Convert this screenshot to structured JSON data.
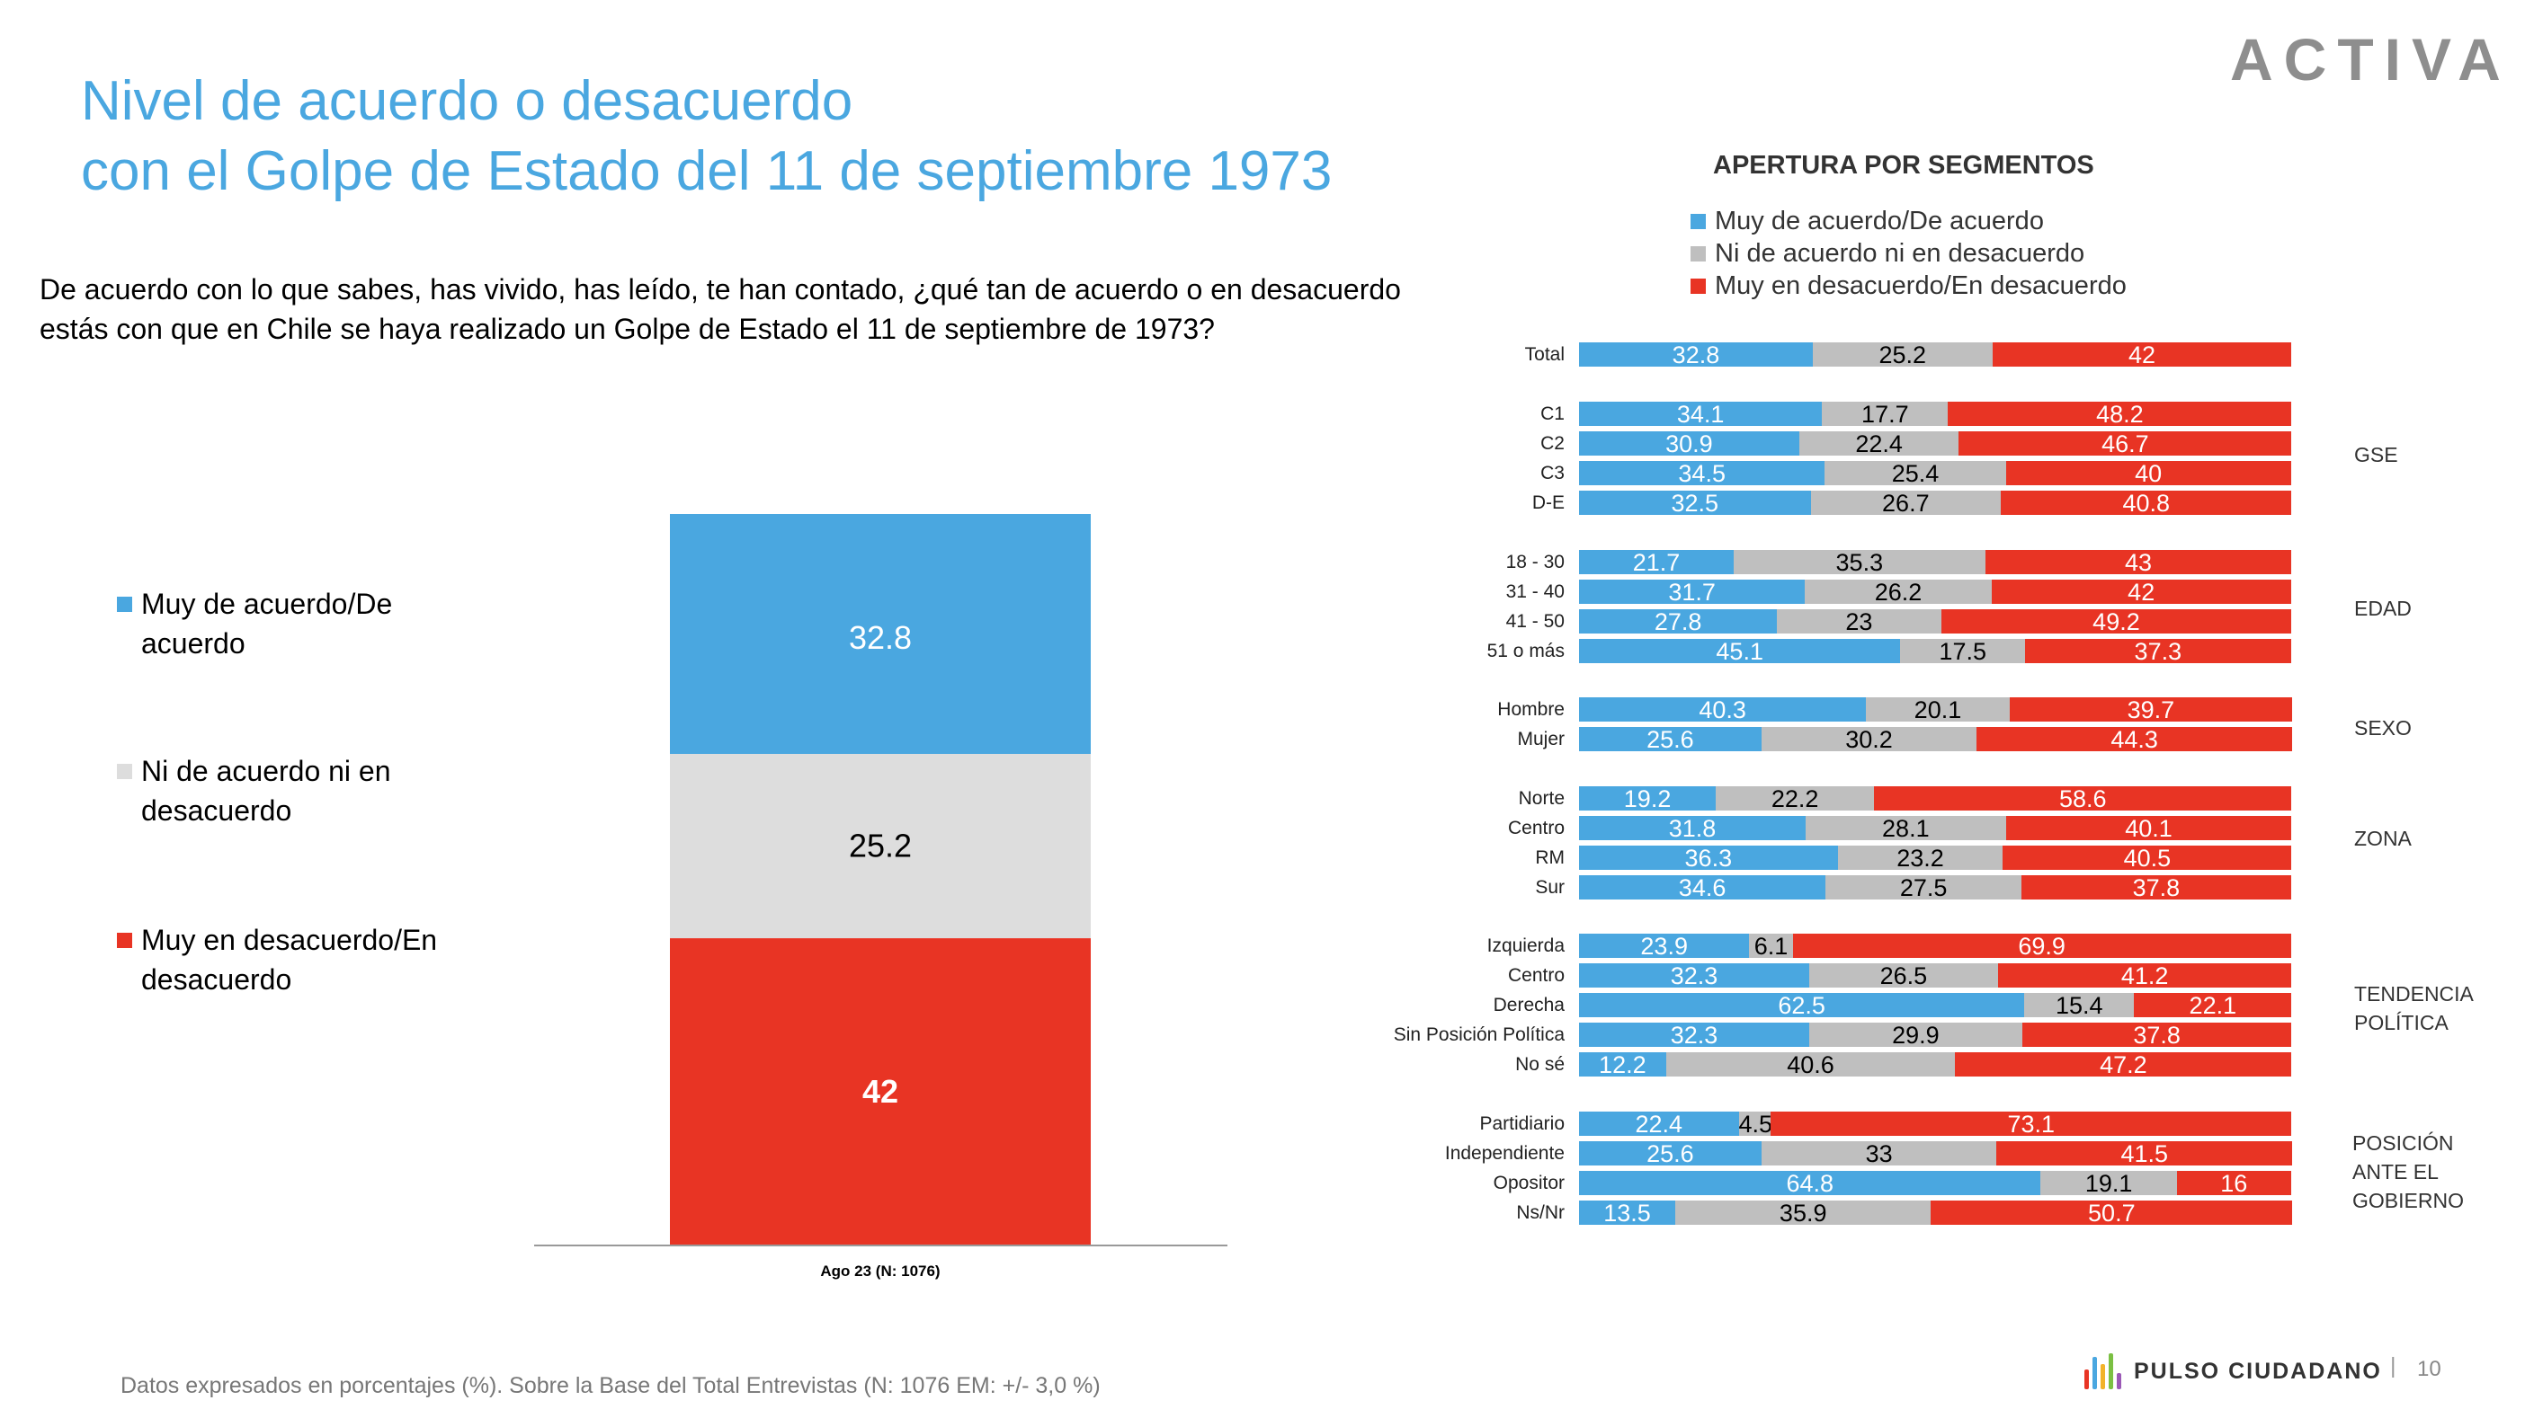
{
  "brand": {
    "logo_text": "ACTIVA",
    "footer_brand": "PULSO CIUDADANO",
    "page_separator": "|",
    "page_number": "10"
  },
  "colors": {
    "agree": "#4AA7E0",
    "neutral_left": "#DDDDDD",
    "neutral": "#BFBFBF",
    "disagree": "#E83424",
    "title": "#4AA7E0"
  },
  "title": {
    "line1": "Nivel de acuerdo o desacuerdo",
    "line2": "con el Golpe de Estado del 11 de septiembre 1973"
  },
  "question": "De acuerdo con lo que sabes, has vivido, has leído, te han contado, ¿qué tan de acuerdo o en desacuerdo estás con que en Chile se haya realizado un Golpe de Estado el 11 de septiembre de 1973?",
  "footer_note": "Datos expresados en porcentajes (%). Sobre la Base del Total Entrevistas (N: 1076 EM: +/- 3,0 %)",
  "chart_data": [
    {
      "type": "bar",
      "stacked": true,
      "categories": [
        "Ago 23 (N: 1076)"
      ],
      "series": [
        {
          "name": "Muy de acuerdo/De acuerdo",
          "values": [
            32.8
          ],
          "label": "32.8"
        },
        {
          "name": "Ni de acuerdo ni en desacuerdo",
          "values": [
            25.2
          ],
          "label": "25.2"
        },
        {
          "name": "Muy en desacuerdo/En desacuerdo",
          "values": [
            42
          ],
          "label": "42"
        }
      ],
      "legend": [
        {
          "text": "Muy de acuerdo/De acuerdo",
          "lines": [
            "Muy de acuerdo/De",
            "acuerdo"
          ]
        },
        {
          "text": "Ni de acuerdo ni en desacuerdo",
          "lines": [
            "Ni de acuerdo ni en",
            "desacuerdo"
          ]
        },
        {
          "text": "Muy en desacuerdo/En desacuerdo",
          "lines": [
            "Muy en desacuerdo/En",
            "desacuerdo"
          ]
        }
      ],
      "legend_position": "left",
      "ylim": [
        0,
        100
      ]
    },
    {
      "type": "bar",
      "orientation": "horizontal",
      "stacked": true,
      "title": "APERTURA POR SEGMENTOS",
      "legend": [
        "Muy de acuerdo/De acuerdo",
        "Ni de acuerdo ni en desacuerdo",
        "Muy en desacuerdo/En desacuerdo"
      ],
      "legend_position": "top",
      "xlim": [
        0,
        100
      ],
      "groups": [
        {
          "name": "",
          "name_lines": [],
          "rows": [
            {
              "label": "Total",
              "values": [
                32.8,
                25.2,
                42
              ]
            }
          ]
        },
        {
          "name": "GSE",
          "name_lines": [
            "GSE"
          ],
          "rows": [
            {
              "label": "C1",
              "values": [
                34.1,
                17.7,
                48.2
              ]
            },
            {
              "label": "C2",
              "values": [
                30.9,
                22.4,
                46.7
              ]
            },
            {
              "label": "C3",
              "values": [
                34.5,
                25.4,
                40
              ]
            },
            {
              "label": "D-E",
              "values": [
                32.5,
                26.7,
                40.8
              ]
            }
          ]
        },
        {
          "name": "EDAD",
          "name_lines": [
            "EDAD"
          ],
          "rows": [
            {
              "label": "18 - 30",
              "values": [
                21.7,
                35.3,
                43
              ]
            },
            {
              "label": "31 - 40",
              "values": [
                31.7,
                26.2,
                42
              ]
            },
            {
              "label": "41 - 50",
              "values": [
                27.8,
                23,
                49.2
              ]
            },
            {
              "label": "51 o más",
              "values": [
                45.1,
                17.5,
                37.3
              ]
            }
          ]
        },
        {
          "name": "SEXO",
          "name_lines": [
            "SEXO"
          ],
          "rows": [
            {
              "label": "Hombre",
              "values": [
                40.3,
                20.1,
                39.7
              ]
            },
            {
              "label": "Mujer",
              "values": [
                25.6,
                30.2,
                44.3
              ]
            }
          ]
        },
        {
          "name": "ZONA",
          "name_lines": [
            "ZONA"
          ],
          "rows": [
            {
              "label": "Norte",
              "values": [
                19.2,
                22.2,
                58.6
              ]
            },
            {
              "label": "Centro",
              "values": [
                31.8,
                28.1,
                40.1
              ]
            },
            {
              "label": "RM",
              "values": [
                36.3,
                23.2,
                40.5
              ]
            },
            {
              "label": "Sur",
              "values": [
                34.6,
                27.5,
                37.8
              ]
            }
          ]
        },
        {
          "name": "TENDENCIA POLÍTICA",
          "name_lines": [
            "TENDENCIA",
            "POLÍTICA"
          ],
          "rows": [
            {
              "label": "Izquierda",
              "values": [
                23.9,
                6.1,
                69.9
              ]
            },
            {
              "label": "Centro",
              "values": [
                32.3,
                26.5,
                41.2
              ]
            },
            {
              "label": "Derecha",
              "values": [
                62.5,
                15.4,
                22.1
              ]
            },
            {
              "label": "Sin Posición Política",
              "values": [
                32.3,
                29.9,
                37.8
              ]
            },
            {
              "label": "No sé",
              "values": [
                12.2,
                40.6,
                47.2
              ]
            }
          ]
        },
        {
          "name": "POSICIÓN ANTE EL GOBIERNO",
          "name_lines": [
            "POSICIÓN",
            "ANTE EL",
            "GOBIERNO"
          ],
          "rows": [
            {
              "label": "Partidiario",
              "values": [
                22.4,
                4.5,
                73.1
              ]
            },
            {
              "label": "Independiente",
              "values": [
                25.6,
                33,
                41.5
              ]
            },
            {
              "label": "Opositor",
              "values": [
                64.8,
                19.1,
                16
              ]
            },
            {
              "label": "Ns/Nr",
              "values": [
                13.5,
                35.9,
                50.7
              ]
            }
          ]
        }
      ]
    }
  ]
}
